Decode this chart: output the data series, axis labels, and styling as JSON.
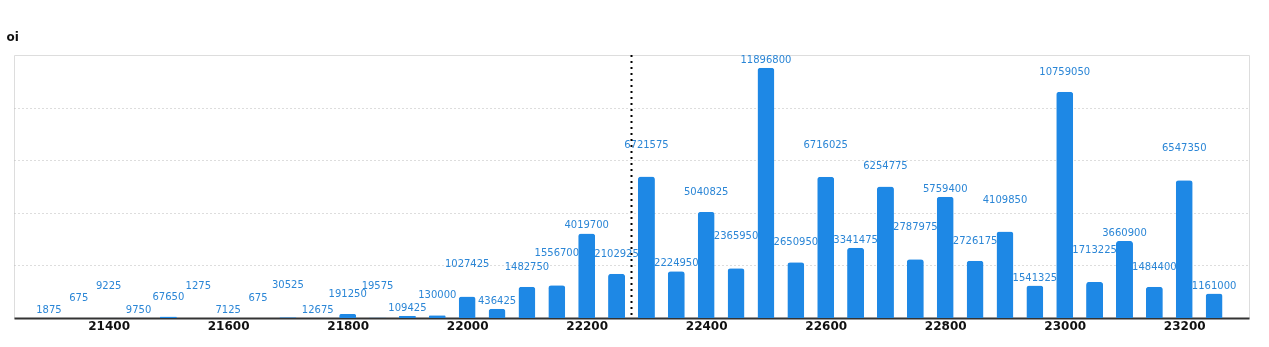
{
  "chart_data": {
    "type": "bar",
    "ylabel": "oi",
    "x": [
      21300,
      21350,
      21400,
      21450,
      21500,
      21550,
      21600,
      21650,
      21700,
      21750,
      21800,
      21850,
      21900,
      21950,
      22000,
      22050,
      22100,
      22150,
      22200,
      22250,
      22300,
      22350,
      22400,
      22450,
      22500,
      22550,
      22600,
      22650,
      22700,
      22750,
      22800,
      22850,
      22900,
      22950,
      23000,
      23050,
      23100,
      23150,
      23200,
      23250
    ],
    "values": [
      1875,
      675,
      9225,
      9750,
      67650,
      1275,
      7125,
      675,
      30525,
      12675,
      191250,
      19575,
      109425,
      130000,
      1027425,
      436425,
      1482750,
      1556700,
      4019700,
      2102925,
      6721575,
      2224950,
      5040825,
      2365950,
      11896800,
      2650950,
      6716025,
      3341475,
      6254775,
      2787975,
      5759400,
      2726175,
      4109850,
      1541325,
      10759050,
      1713225,
      3660900,
      1484400,
      6547350,
      1161000
    ],
    "color": "#1e88e5",
    "data_labels": true,
    "xlim": [
      21250,
      23300
    ],
    "xticks": [
      21400,
      21600,
      21800,
      22000,
      22200,
      22400,
      22600,
      22800,
      23000,
      23200
    ],
    "ylim": [
      0,
      12500000
    ],
    "yticks": [
      {
        "value": 2500000,
        "label": null
      },
      {
        "value": 5000000,
        "label": null
      },
      {
        "value": 7500000,
        "label": null
      },
      {
        "value": 10000000,
        "label": null
      }
    ],
    "tick_labels": "x",
    "grid": "y",
    "ref_lines": [
      {
        "axis": "x",
        "value": 22275,
        "color": "#000000",
        "line_style": "dotted"
      }
    ]
  }
}
